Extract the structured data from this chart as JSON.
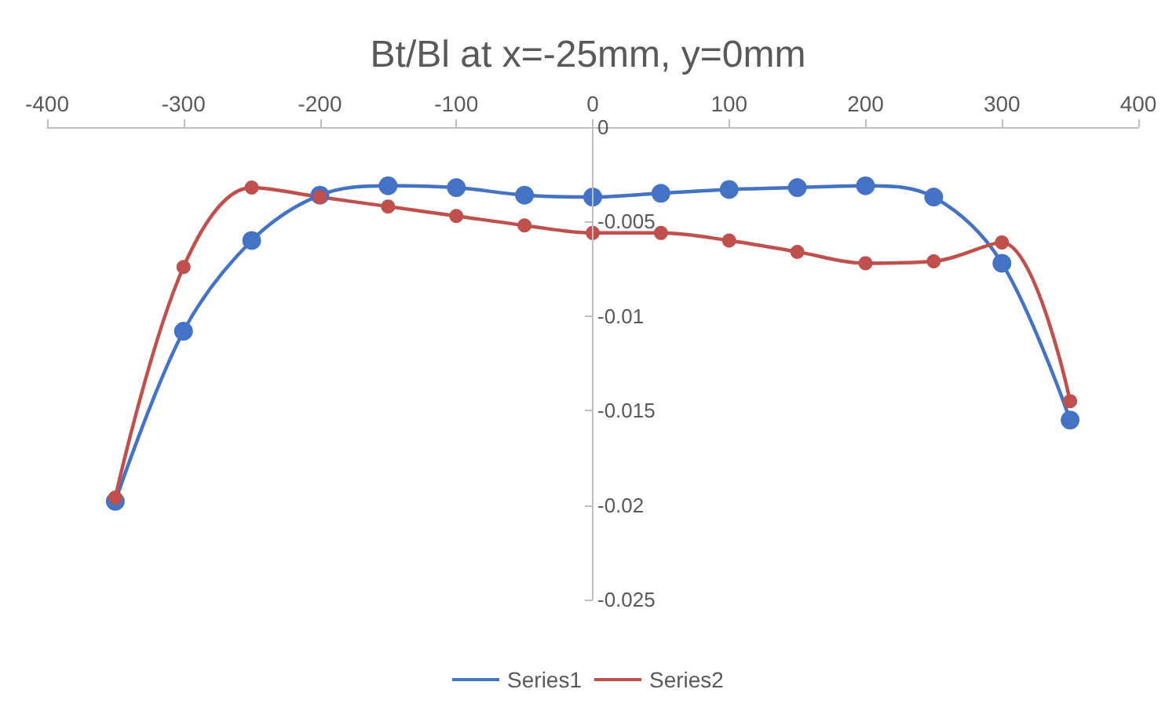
{
  "chart_data": {
    "type": "line",
    "title": "Bt/Bl at x=-25mm, y=0mm",
    "x": [
      -350,
      -300,
      -250,
      -200,
      -150,
      -100,
      -50,
      0,
      50,
      100,
      150,
      200,
      250,
      300,
      350
    ],
    "series": [
      {
        "name": "Series1",
        "color": "#4472c4",
        "values": [
          -0.0198,
          -0.0108,
          -0.006,
          -0.0036,
          -0.0031,
          -0.0032,
          -0.0036,
          -0.0037,
          -0.0035,
          -0.0033,
          -0.0032,
          -0.0031,
          -0.0037,
          -0.0072,
          -0.0155
        ]
      },
      {
        "name": "Series2",
        "color": "#c0504d",
        "values": [
          -0.0196,
          -0.0074,
          -0.0032,
          -0.0037,
          -0.0042,
          -0.0047,
          -0.0052,
          -0.0056,
          -0.0056,
          -0.006,
          -0.0066,
          -0.0072,
          -0.0071,
          -0.0061,
          -0.0145
        ]
      }
    ],
    "xlim": [
      -400,
      400
    ],
    "xticks": [
      -400,
      -300,
      -200,
      -100,
      0,
      100,
      200,
      300,
      400
    ],
    "ylim": [
      -0.025,
      0
    ],
    "yticks": [
      -0.025,
      -0.02,
      -0.015,
      -0.01,
      -0.005,
      0
    ],
    "grid": false,
    "legend": "bottom",
    "marker": "circle",
    "line_style": "solid"
  }
}
